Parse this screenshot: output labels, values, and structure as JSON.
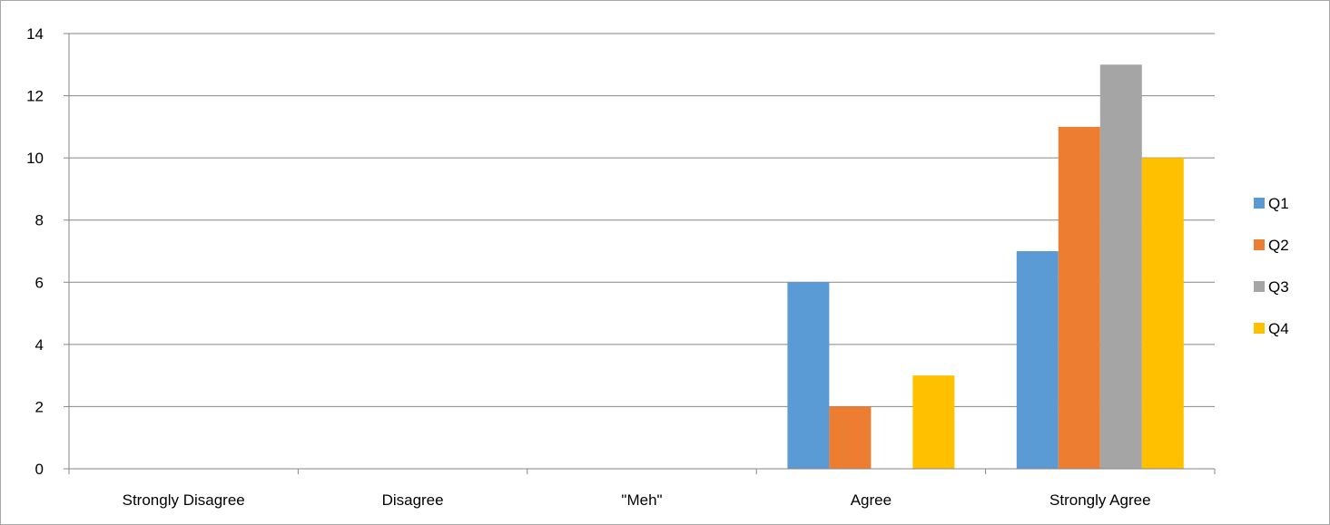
{
  "chart_data": {
    "type": "bar",
    "title": "",
    "xlabel": "",
    "ylabel": "",
    "categories": [
      "Strongly Disagree",
      "Disagree",
      "\"Meh\"",
      "Agree",
      "Strongly Agree"
    ],
    "series": [
      {
        "name": "Q1",
        "color": "#5B9BD5",
        "values": [
          0,
          0,
          0,
          6,
          7
        ]
      },
      {
        "name": "Q2",
        "color": "#ED7D31",
        "values": [
          0,
          0,
          0,
          2,
          11
        ]
      },
      {
        "name": "Q3",
        "color": "#A5A5A5",
        "values": [
          0,
          0,
          0,
          0,
          13
        ]
      },
      {
        "name": "Q4",
        "color": "#FFC000",
        "values": [
          0,
          0,
          0,
          3,
          10
        ]
      }
    ],
    "ylim": [
      0,
      14
    ],
    "yticks": [
      0,
      2,
      4,
      6,
      8,
      10,
      12,
      14
    ],
    "grid": true,
    "legend_position": "right"
  }
}
